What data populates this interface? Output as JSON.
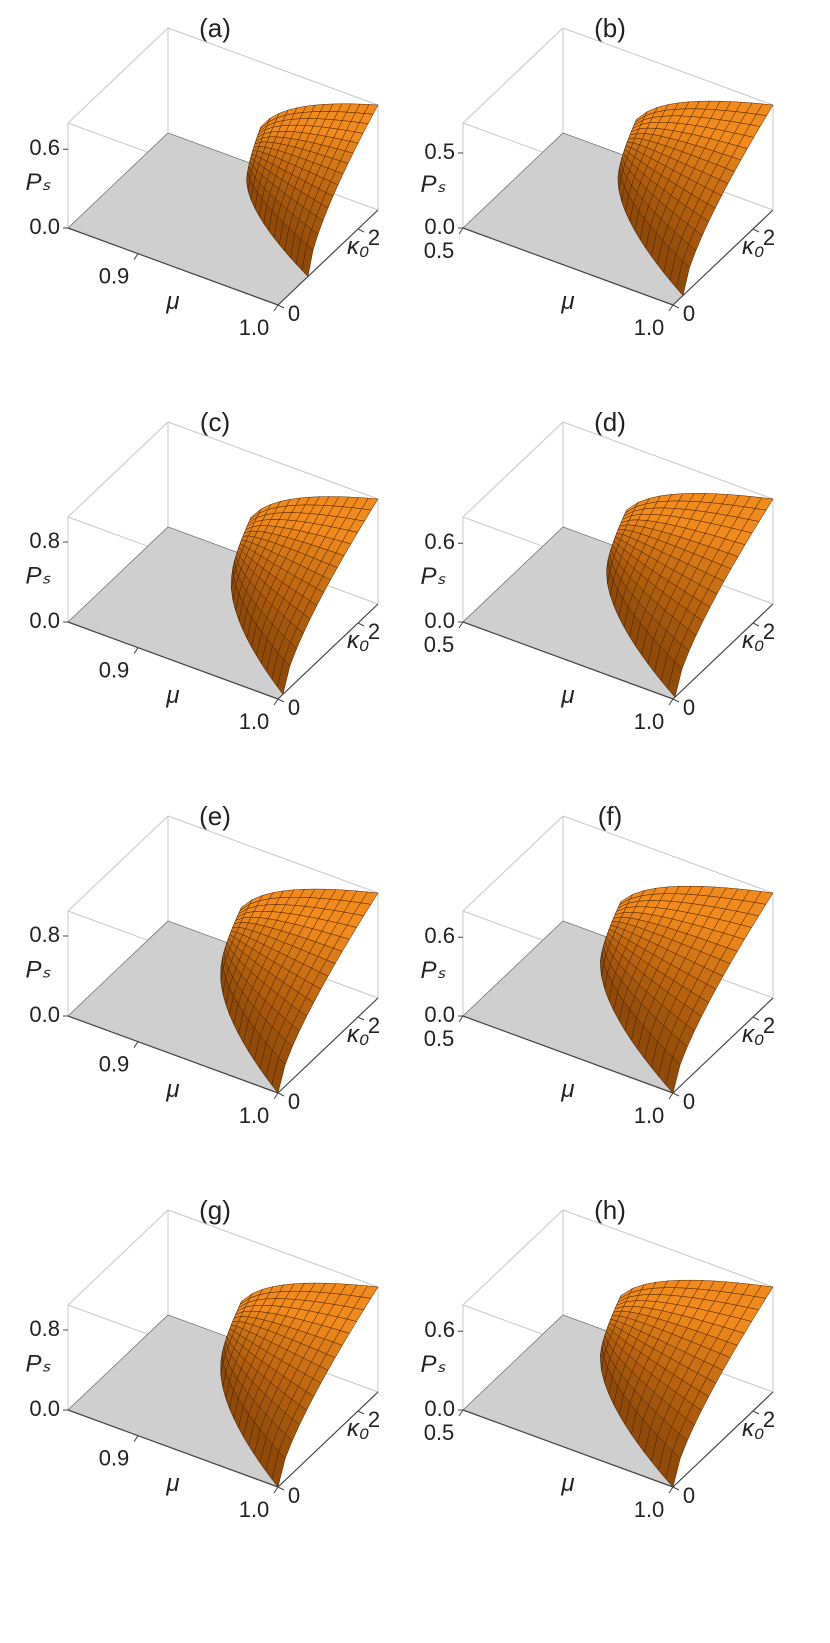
{
  "chart_data": [
    {
      "type": "surface3d",
      "title": "(a)",
      "xlabel": "μ",
      "ylabel": "κ₀",
      "zlabel": "Pₛ",
      "xlim": [
        0.85,
        1
      ],
      "xticks": [
        0.9,
        {
          "value": 1,
          "label": "1.0"
        }
      ],
      "ylim": [
        0,
        2.5
      ],
      "yticks": [
        0,
        2
      ],
      "zlim": [
        0,
        0.8
      ],
      "zticks": [
        {
          "value": 0,
          "label": "0.0"
        },
        0.6
      ],
      "color": "#f08a1c"
    },
    {
      "type": "surface3d",
      "title": "(b)",
      "xlabel": "μ",
      "ylabel": "κ₀",
      "zlabel": "Pₛ",
      "xlim": [
        0.5,
        1
      ],
      "xticks": [
        0.5,
        {
          "value": 1,
          "label": "1.0"
        }
      ],
      "ylim": [
        0,
        2.5
      ],
      "yticks": [
        0,
        2
      ],
      "zlim": [
        0,
        0.7
      ],
      "zticks": [
        {
          "value": 0,
          "label": "0.0"
        },
        0.5
      ],
      "color": "#f08a1c"
    },
    {
      "type": "surface3d",
      "title": "(c)",
      "xlabel": "μ",
      "ylabel": "κ₀",
      "zlabel": "Pₛ",
      "xlim": [
        0.85,
        1
      ],
      "xticks": [
        0.9,
        {
          "value": 1,
          "label": "1.0"
        }
      ],
      "ylim": [
        0,
        2.5
      ],
      "yticks": [
        0,
        2
      ],
      "zlim": [
        0,
        1.05
      ],
      "zticks": [
        {
          "value": 0,
          "label": "0.0"
        },
        0.8
      ],
      "color": "#f08a1c"
    },
    {
      "type": "surface3d",
      "title": "(d)",
      "xlabel": "μ",
      "ylabel": "κ₀",
      "zlabel": "Pₛ",
      "xlim": [
        0.5,
        1
      ],
      "xticks": [
        0.5,
        {
          "value": 1,
          "label": "1.0"
        }
      ],
      "ylim": [
        0,
        2.5
      ],
      "yticks": [
        0,
        2
      ],
      "zlim": [
        0,
        0.8
      ],
      "zticks": [
        {
          "value": 0,
          "label": "0.0"
        },
        0.6
      ],
      "color": "#f08a1c"
    },
    {
      "type": "surface3d",
      "title": "(e)",
      "xlabel": "μ",
      "ylabel": "κ₀",
      "zlabel": "Pₛ",
      "xlim": [
        0.85,
        1
      ],
      "xticks": [
        0.9,
        {
          "value": 1,
          "label": "1.0"
        }
      ],
      "ylim": [
        0,
        2.5
      ],
      "yticks": [
        0,
        2
      ],
      "zlim": [
        0,
        1.05
      ],
      "zticks": [
        {
          "value": 0,
          "label": "0.0"
        },
        0.8
      ],
      "color": "#f08a1c"
    },
    {
      "type": "surface3d",
      "title": "(f)",
      "xlabel": "μ",
      "ylabel": "κ₀",
      "zlabel": "Pₛ",
      "xlim": [
        0.5,
        1
      ],
      "xticks": [
        0.5,
        {
          "value": 1,
          "label": "1.0"
        }
      ],
      "ylim": [
        0,
        2.5
      ],
      "yticks": [
        0,
        2
      ],
      "zlim": [
        0,
        0.8
      ],
      "zticks": [
        {
          "value": 0,
          "label": "0.0"
        },
        0.6
      ],
      "color": "#f08a1c"
    },
    {
      "type": "surface3d",
      "title": "(g)",
      "xlabel": "μ",
      "ylabel": "κ₀",
      "zlabel": "Pₛ",
      "xlim": [
        0.85,
        1
      ],
      "xticks": [
        0.9,
        {
          "value": 1,
          "label": "1.0"
        }
      ],
      "ylim": [
        0,
        2.5
      ],
      "yticks": [
        0,
        2
      ],
      "zlim": [
        0,
        1.05
      ],
      "zticks": [
        {
          "value": 0,
          "label": "0.0"
        },
        0.8
      ],
      "color": "#f08a1c"
    },
    {
      "type": "surface3d",
      "title": "(h)",
      "xlabel": "μ",
      "ylabel": "κ₀",
      "zlabel": "Pₛ",
      "xlim": [
        0.5,
        1
      ],
      "xticks": [
        0.5,
        {
          "value": 1,
          "label": "1.0"
        }
      ],
      "ylim": [
        0,
        2.5
      ],
      "yticks": [
        0,
        2
      ],
      "zlim": [
        0,
        0.8
      ],
      "zticks": [
        {
          "value": 0,
          "label": "0.0"
        },
        0.6
      ],
      "color": "#f08a1c"
    }
  ]
}
